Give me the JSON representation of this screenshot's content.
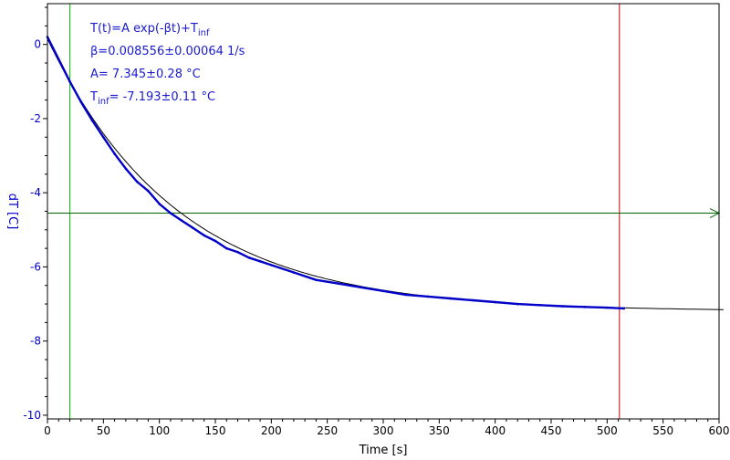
{
  "chart_data": {
    "type": "line",
    "xlabel": "Time [s]",
    "ylabel": "dT [C]",
    "xlim": [
      0,
      600
    ],
    "ylim": [
      -10.1,
      1.1
    ],
    "x_ticks": [
      0,
      50,
      100,
      150,
      200,
      250,
      300,
      350,
      400,
      450,
      500,
      550,
      600
    ],
    "y_ticks": [
      0,
      -2,
      -4,
      -6,
      -8,
      -10
    ],
    "grid": false,
    "series": [
      {
        "role": "measured data",
        "color": "#0000c8",
        "x": [
          0,
          10,
          20,
          30,
          40,
          50,
          60,
          70,
          80,
          90,
          100,
          110,
          120,
          130,
          140,
          150,
          160,
          170,
          180,
          190,
          200,
          220,
          240,
          260,
          280,
          300,
          320,
          340,
          360,
          380,
          400,
          420,
          440,
          460,
          480,
          500,
          515
        ],
        "y": [
          0.2,
          -0.4,
          -1.0,
          -1.55,
          -2.05,
          -2.5,
          -2.95,
          -3.35,
          -3.7,
          -3.95,
          -4.3,
          -4.55,
          -4.75,
          -4.95,
          -5.15,
          -5.3,
          -5.5,
          -5.6,
          -5.75,
          -5.85,
          -5.95,
          -6.15,
          -6.35,
          -6.45,
          -6.55,
          -6.65,
          -6.75,
          -6.8,
          -6.85,
          -6.9,
          -6.95,
          -7.0,
          -7.03,
          -7.06,
          -7.08,
          -7.1,
          -7.12
        ]
      },
      {
        "role": "exponential fit",
        "color": "#000000",
        "x_range": [
          0,
          605
        ],
        "formula": "A*exp(-beta*t)+T_inf"
      }
    ],
    "fit": {
      "A": 7.345,
      "beta": 0.008556,
      "T_inf": -7.193
    },
    "markers": {
      "vertical_green_x": 20,
      "vertical_red_x": 511,
      "horizontal_green_y": -4.55,
      "green_color": "#00c800",
      "red_color": "#c80000",
      "horizontal_color": "#006400"
    },
    "annotations": [
      {
        "main": "T(t)=A exp(-βt)+T",
        "sub": "inf",
        "after": ""
      },
      {
        "main": "β=0.008556±0.00064 1/s",
        "sub": "",
        "after": ""
      },
      {
        "main": "A= 7.345±0.28 °C",
        "sub": "",
        "after": ""
      },
      {
        "main": "T",
        "sub": "inf",
        "after": "= -7.193±0.11 °C"
      }
    ]
  }
}
